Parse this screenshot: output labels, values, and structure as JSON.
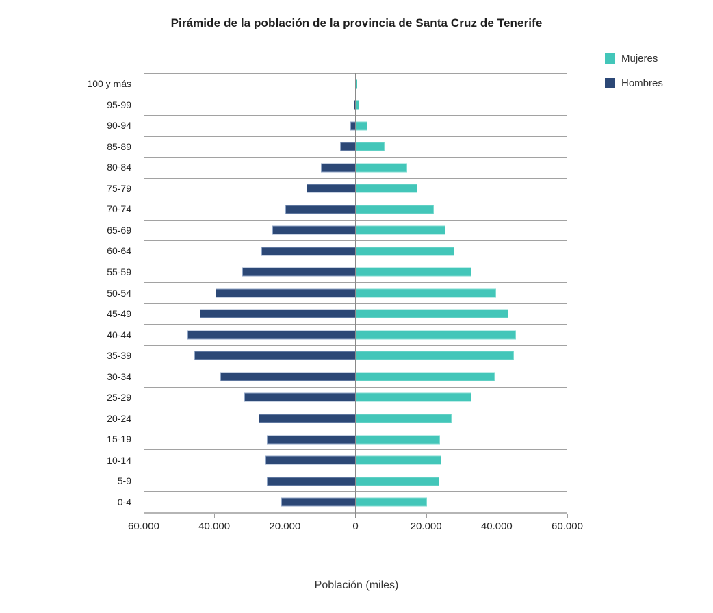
{
  "chart": {
    "title": "Pirámide de la población de la provincia de Santa Cruz de Tenerife",
    "xlabel": "Población (miles)",
    "legend": [
      {
        "label": "Mujeres",
        "color": "#43C6B9"
      },
      {
        "label": "Hombres",
        "color": "#2C4876"
      }
    ]
  },
  "colors": {
    "mujeres": "#43C6B9",
    "hombres": "#2C4876",
    "gridline": "#a2a2a2",
    "axis_line": "#b5b5b5",
    "zero_line": "#8a8a8a",
    "text": "#262626"
  },
  "chart_data": {
    "type": "bar",
    "subtype": "population-pyramid",
    "orientation": "horizontal",
    "title": "Pirámide de la población de la provincia de Santa Cruz de Tenerife",
    "xlabel": "Población (miles)",
    "ylabel": "",
    "categories": [
      "100 y más",
      "95-99",
      "90-94",
      "85-89",
      "80-84",
      "75-79",
      "70-74",
      "65-69",
      "60-64",
      "55-59",
      "50-54",
      "45-49",
      "40-44",
      "35-39",
      "30-34",
      "25-29",
      "20-24",
      "15-19",
      "10-14",
      "5-9",
      "0-4"
    ],
    "series": [
      {
        "name": "Hombres",
        "side": "left",
        "color": "#2C4876",
        "values": [
          100,
          500,
          1500,
          4300,
          9800,
          13800,
          19800,
          23500,
          26700,
          32000,
          39700,
          44200,
          47500,
          45700,
          38200,
          31500,
          27400,
          25100,
          25400,
          25200,
          21000
        ]
      },
      {
        "name": "Mujeres",
        "side": "right",
        "color": "#43C6B9",
        "values": [
          400,
          1100,
          3400,
          8200,
          14700,
          17600,
          22200,
          25400,
          28000,
          32800,
          39900,
          43400,
          45500,
          44900,
          39500,
          32900,
          27200,
          23900,
          24300,
          23800,
          20200
        ]
      }
    ],
    "xlim": [
      -60000,
      60000
    ],
    "x_ticks": [
      -60000,
      -40000,
      -20000,
      0,
      20000,
      40000,
      60000
    ],
    "x_tick_labels": [
      "60.000",
      "40.000",
      "20.000",
      "0",
      "20.000",
      "40.000",
      "60.000"
    ],
    "grid": "horizontal-band-lines",
    "legend_position": "top-right"
  }
}
